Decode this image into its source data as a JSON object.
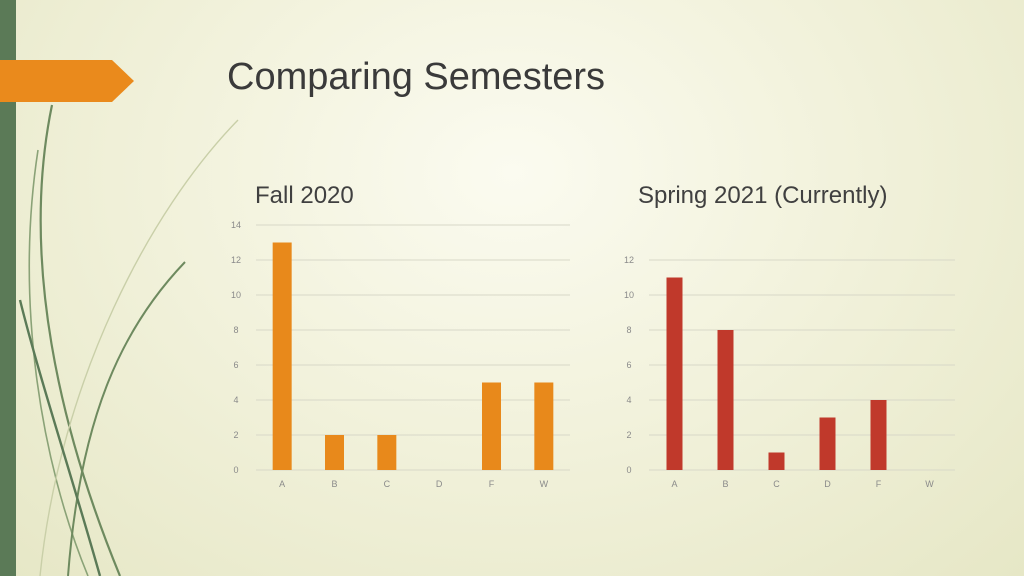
{
  "slide": {
    "title": "Comparing Semesters",
    "accent_color": "#ea8a1c",
    "bar_color": "#5b7a57"
  },
  "chart_data": [
    {
      "type": "bar",
      "title": "Fall 2020",
      "categories": [
        "A",
        "B",
        "C",
        "D",
        "F",
        "W"
      ],
      "values": [
        13,
        2,
        2,
        0,
        5,
        5
      ],
      "ylim": [
        0,
        14
      ],
      "yticks": [
        0,
        2,
        4,
        6,
        8,
        10,
        12,
        14
      ],
      "grid": true,
      "color": "#e8891b"
    },
    {
      "type": "bar",
      "title": "Spring 2021 (Currently)",
      "categories": [
        "A",
        "B",
        "C",
        "D",
        "F",
        "W"
      ],
      "values": [
        11,
        8,
        1,
        3,
        4,
        0
      ],
      "ylim": [
        0,
        12
      ],
      "yticks": [
        0,
        2,
        4,
        6,
        8,
        10,
        12
      ],
      "grid": true,
      "color": "#c0392b"
    }
  ]
}
